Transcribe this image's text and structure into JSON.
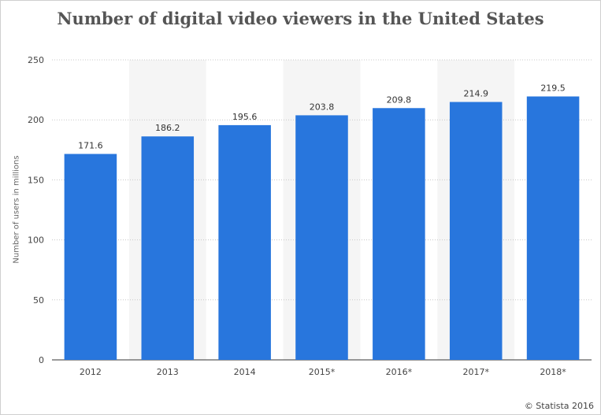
{
  "chart_data": {
    "type": "bar",
    "title": "Number of digital video viewers in the United States",
    "xlabel": "",
    "ylabel": "Number of users in millions",
    "categories": [
      "2012",
      "2013",
      "2014",
      "2015*",
      "2016*",
      "2017*",
      "2018*"
    ],
    "values": [
      171.6,
      186.2,
      195.6,
      203.8,
      209.8,
      214.9,
      219.5
    ],
    "value_labels": [
      "171.6",
      "186.2",
      "195.6",
      "203.8",
      "209.8",
      "214.9",
      "219.5"
    ],
    "ylim": [
      0,
      250
    ],
    "yticks": [
      0,
      50,
      100,
      150,
      200,
      250
    ],
    "grid": true,
    "bar_color": "#2876dd",
    "band_color": "#f5f5f5"
  },
  "footer": {
    "credit": "© Statista 2016"
  }
}
